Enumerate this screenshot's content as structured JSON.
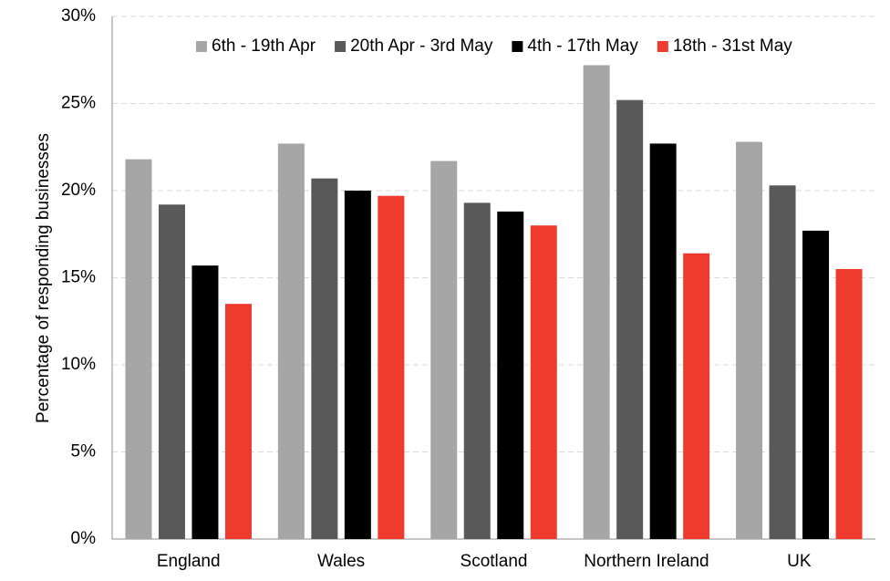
{
  "chart_data": {
    "type": "bar",
    "y_label": "Percentage of responding businesses",
    "categories": [
      "England",
      "Wales",
      "Scotland",
      "Northern Ireland",
      "UK"
    ],
    "series": [
      {
        "name": "6th - 19th Apr",
        "color": "#a6a6a6",
        "values": [
          21.8,
          22.7,
          21.7,
          27.2,
          22.8
        ]
      },
      {
        "name": "20th Apr - 3rd May",
        "color": "#595959",
        "values": [
          19.2,
          20.7,
          19.3,
          25.2,
          20.3
        ]
      },
      {
        "name": "4th - 17th May",
        "color": "#000000",
        "values": [
          15.7,
          20.0,
          18.8,
          22.7,
          17.7
        ]
      },
      {
        "name": "18th - 31st May",
        "color": "#ee3b2e",
        "values": [
          13.5,
          19.7,
          18.0,
          16.4,
          15.5
        ]
      }
    ],
    "ylim": [
      0,
      30
    ],
    "yticks": [
      {
        "value": 0,
        "label": "0%"
      },
      {
        "value": 5,
        "label": "5%"
      },
      {
        "value": 10,
        "label": "10%"
      },
      {
        "value": 15,
        "label": "15%"
      },
      {
        "value": 20,
        "label": "20%"
      },
      {
        "value": 25,
        "label": "25%"
      },
      {
        "value": 30,
        "label": "30%"
      }
    ],
    "grid": true,
    "legend": "top-right"
  }
}
